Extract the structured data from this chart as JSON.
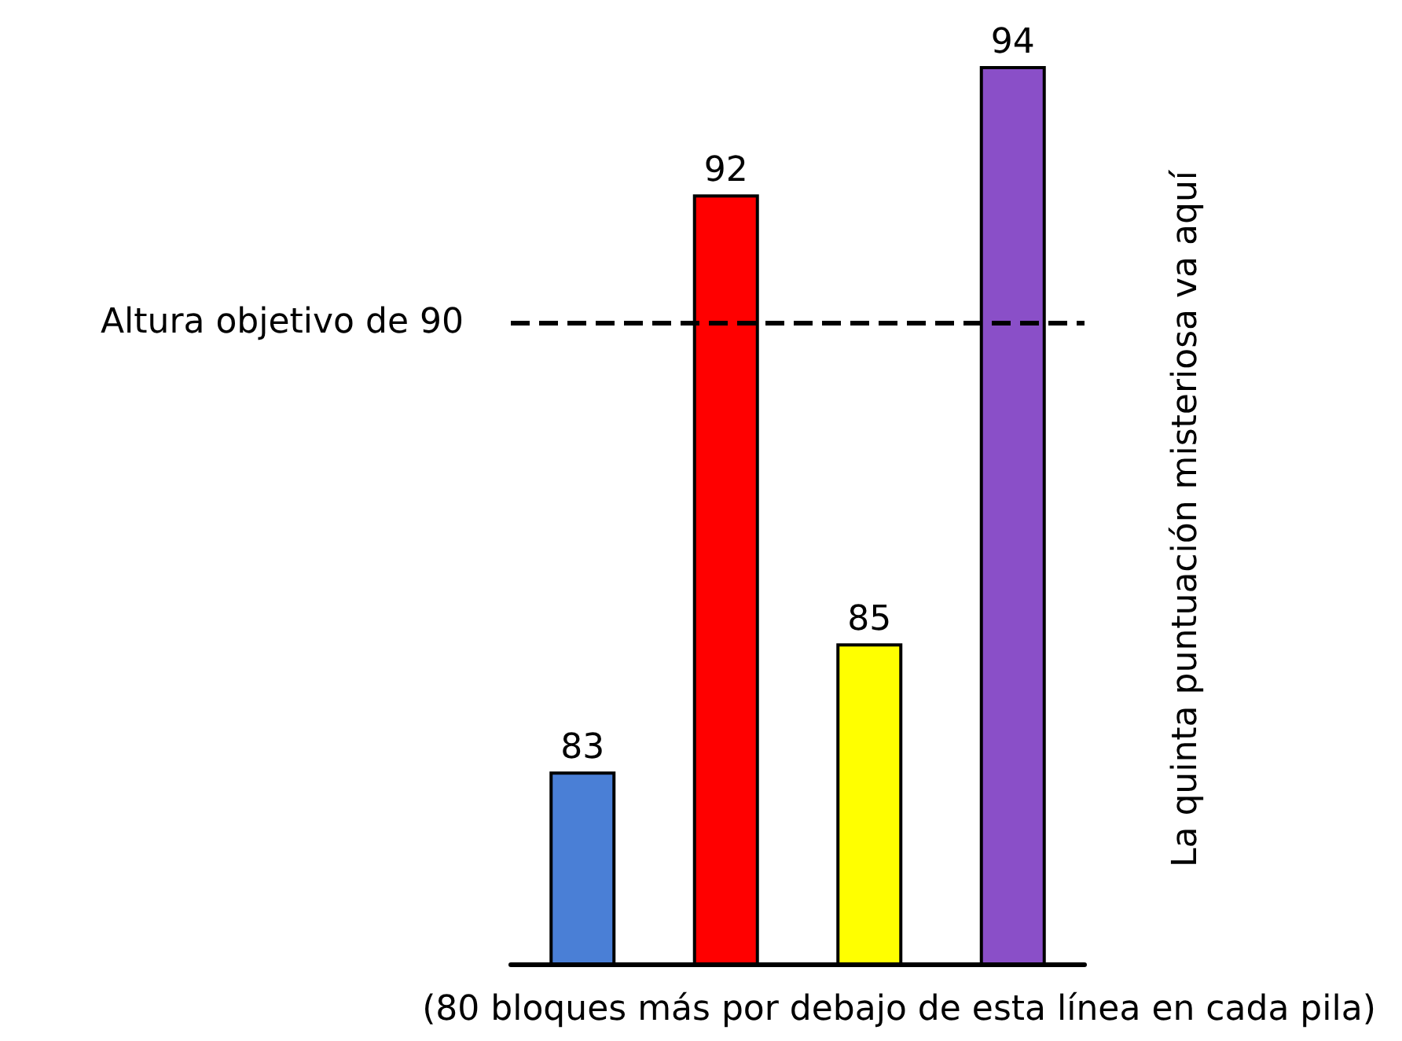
{
  "chart_data": {
    "type": "bar",
    "categories": [
      null,
      null,
      null,
      null
    ],
    "values": [
      83,
      92,
      85,
      94
    ],
    "colors": [
      "#4a7fd6",
      "#ff0000",
      "#ffff00",
      "#8a4fc8"
    ],
    "ylim": [
      80,
      94
    ],
    "data_labels": true,
    "ref_lines": [
      {
        "axis": "y",
        "value": 90,
        "label": "Altura objetivo de 90",
        "color": "#000000",
        "line_style": "dashed"
      }
    ],
    "annotations": [
      "La quinta puntuación misteriosa va aquí",
      "(80 bloques más por debajo de esta línea en cada pila)"
    ]
  }
}
